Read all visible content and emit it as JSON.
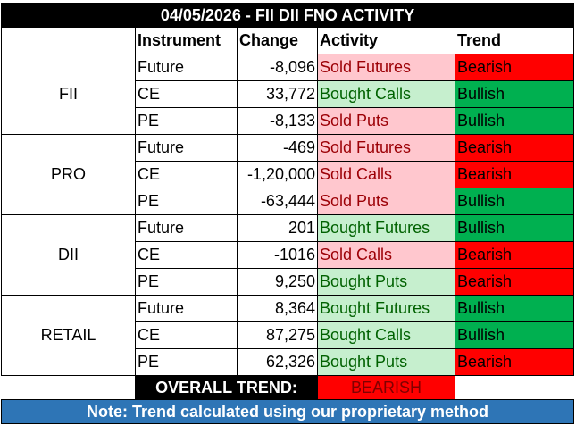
{
  "title": "04/05/2026 - FII DII FNO ACTIVITY",
  "headers": {
    "instrument": "Instrument",
    "change": "Change",
    "activity": "Activity",
    "trend": "Trend"
  },
  "groups": [
    {
      "name": "FII",
      "rows": [
        {
          "instrument": "Future",
          "change": "-8,096",
          "activity": "Sold Futures",
          "trend": "Bearish"
        },
        {
          "instrument": "CE",
          "change": "33,772",
          "activity": "Bought Calls",
          "trend": "Bullish"
        },
        {
          "instrument": "PE",
          "change": "-8,133",
          "activity": "Sold Puts",
          "trend": "Bullish"
        }
      ]
    },
    {
      "name": "PRO",
      "rows": [
        {
          "instrument": "Future",
          "change": "-469",
          "activity": "Sold Futures",
          "trend": "Bearish"
        },
        {
          "instrument": "CE",
          "change": "-1,20,000",
          "activity": "Sold Calls",
          "trend": "Bearish"
        },
        {
          "instrument": "PE",
          "change": "-63,444",
          "activity": "Sold Puts",
          "trend": "Bullish"
        }
      ]
    },
    {
      "name": "DII",
      "rows": [
        {
          "instrument": "Future",
          "change": "201",
          "activity": "Bought Futures",
          "trend": "Bullish"
        },
        {
          "instrument": "CE",
          "change": "-1016",
          "activity": "Sold Calls",
          "trend": "Bearish"
        },
        {
          "instrument": "PE",
          "change": "9,250",
          "activity": "Bought Puts",
          "trend": "Bearish"
        }
      ]
    },
    {
      "name": "RETAIL",
      "rows": [
        {
          "instrument": "Future",
          "change": "8,364",
          "activity": "Bought Futures",
          "trend": "Bullish"
        },
        {
          "instrument": "CE",
          "change": "87,275",
          "activity": "Bought Calls",
          "trend": "Bullish"
        },
        {
          "instrument": "PE",
          "change": "62,326",
          "activity": "Bought Puts",
          "trend": "Bearish"
        }
      ]
    }
  ],
  "overall": {
    "label": "OVERALL TREND:",
    "value": "BEARISH"
  },
  "note": "Note: Trend calculated using our proprietary method",
  "colors": {
    "bearish_trend": "#ff0000",
    "bullish_trend": "#00b050",
    "sold_activity_bg": "#ffc7ce",
    "sold_activity_text": "#9c0006",
    "bought_activity_bg": "#c6efce",
    "bought_activity_text": "#006100",
    "note_bg": "#2e75b6"
  }
}
